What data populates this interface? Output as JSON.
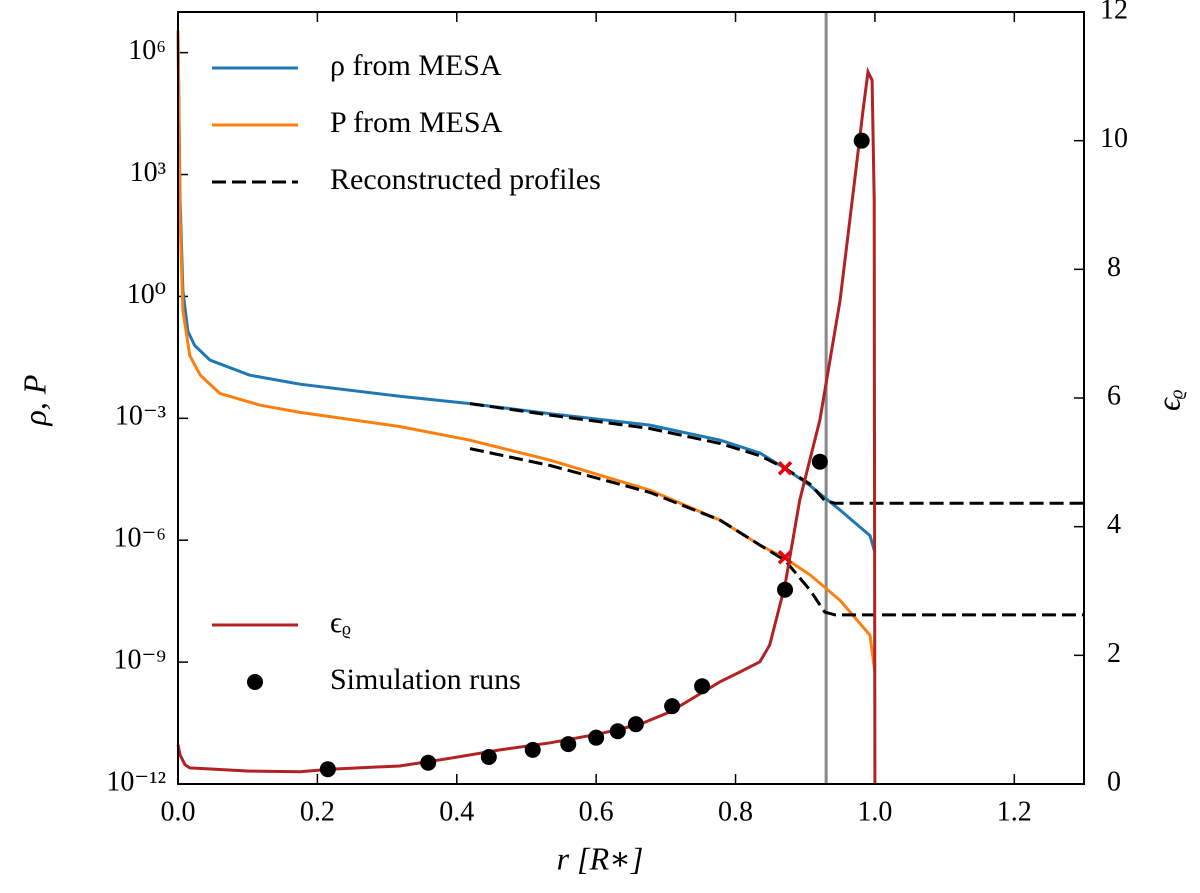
{
  "chart_data": {
    "type": "line",
    "xlabel": "r [R∗]",
    "ylabel": "ρ, P",
    "y2label": "ϵᵨ",
    "xlim": [
      0,
      1.3
    ],
    "xticks": [
      {
        "value": 0,
        "label": "0.0"
      },
      0.2,
      0.4,
      0.6,
      0.8,
      {
        "value": 1,
        "label": "1.0"
      },
      1.2
    ],
    "ylim": [
      1e-12,
      10000000.0
    ],
    "yscale": "log",
    "yticks": [
      {
        "value": 1e-12,
        "label": "10⁻¹²"
      },
      {
        "value": 1e-09,
        "label": "10⁻⁹"
      },
      {
        "value": 1e-06,
        "label": "10⁻⁶"
      },
      {
        "value": 0.001,
        "label": "10⁻³"
      },
      {
        "value": 1,
        "label": "10⁰"
      },
      {
        "value": 1000,
        "label": "10³"
      },
      {
        "value": 1000000,
        "label": "10⁶"
      }
    ],
    "y2lim": [
      0,
      12
    ],
    "y2ticks": [
      0,
      2,
      4,
      6,
      8,
      10,
      12
    ],
    "vline": {
      "x": 0.93,
      "color": "#888888"
    },
    "series": [
      {
        "name": "ρ from MESA",
        "color": "#1f77b4",
        "legend": "upper left",
        "x": [
          0,
          0.003,
          0.007,
          0.014,
          0.024,
          0.046,
          0.103,
          0.175,
          0.318,
          0.419,
          0.534,
          0.677,
          0.778,
          0.835,
          0.871,
          0.907,
          0.95,
          0.993,
          1.0
        ],
        "values": [
          3500000,
          230,
          1.4,
          0.14,
          0.062,
          0.027,
          0.0115,
          0.0069,
          0.0035,
          0.0023,
          0.0013,
          0.00068,
          0.00029,
          0.00014,
          5.9e-05,
          2.2e-05,
          5.5e-06,
          1.3e-06,
          5e-07
        ]
      },
      {
        "name": "P from MESA",
        "color": "#ff7f0e",
        "legend": "upper left",
        "x": [
          0,
          0.003,
          0.007,
          0.017,
          0.032,
          0.06,
          0.118,
          0.175,
          0.318,
          0.419,
          0.534,
          0.677,
          0.778,
          0.835,
          0.871,
          0.907,
          0.95,
          0.993,
          1.0
        ],
        "values": [
          3500000,
          74,
          0.45,
          0.035,
          0.0115,
          0.0041,
          0.0021,
          0.0014,
          0.00063,
          0.00029,
          9.3e-05,
          1.7e-05,
          3.1e-06,
          7.6e-07,
          3.6e-07,
          1.4e-07,
          3.3e-08,
          4.6e-09,
          5.6e-10
        ]
      },
      {
        "name": "Reconstructed profiles",
        "color": "#000000",
        "dash": true,
        "legend": "upper left",
        "x": [
          0.419,
          0.534,
          0.677,
          0.778,
          0.835,
          0.871,
          0.907,
          0.928,
          0.943,
          1.3
        ],
        "values": [
          0.0023,
          0.0012,
          0.00056,
          0.00024,
          0.00012,
          5.9e-05,
          2.4e-05,
          9.5e-06,
          8.1e-06,
          8.1e-06
        ]
      },
      {
        "color": "#000000",
        "dash": true,
        "x": [
          0.419,
          0.534,
          0.677,
          0.778,
          0.835,
          0.871,
          0.907,
          0.928,
          0.943,
          1.3
        ],
        "values": [
          0.00018,
          6.9e-05,
          1.5e-05,
          3.1e-06,
          7.6e-07,
          3.2e-07,
          5.9e-08,
          1.7e-08,
          1.45e-08,
          1.45e-08
        ]
      },
      {
        "type": "scatter",
        "marker": "x",
        "color": "#e8000b",
        "x": [
          0.871,
          0.871
        ],
        "values": [
          5.9e-05,
          3.8e-07
        ]
      },
      {
        "name": "ϵᵨ",
        "color": "#b22222",
        "axis": "y2",
        "legend": "lower left",
        "x": [
          0,
          0.003,
          0.01,
          0.017,
          0.103,
          0.175,
          0.218,
          0.318,
          0.39,
          0.462,
          0.534,
          0.605,
          0.663,
          0.706,
          0.749,
          0.778,
          0.806,
          0.835,
          0.849,
          0.871,
          0.892,
          0.921,
          0.95,
          0.971,
          0.983,
          0.99,
          0.996,
          0.999,
          1.0
        ],
        "values": [
          0.61,
          0.45,
          0.3,
          0.25,
          0.2,
          0.19,
          0.23,
          0.28,
          0.4,
          0.53,
          0.64,
          0.78,
          0.93,
          1.12,
          1.4,
          1.59,
          1.74,
          1.9,
          2.16,
          3.09,
          4.41,
          5.66,
          7.52,
          9.39,
          10.48,
          11.07,
          10.94,
          9.08,
          0
        ]
      },
      {
        "name": "Simulation runs",
        "type": "scatter",
        "marker": "o",
        "color": "#000000",
        "axis": "y2",
        "legend": "lower left",
        "x": [
          0.215,
          0.359,
          0.446,
          0.509,
          0.56,
          0.6,
          0.631,
          0.657,
          0.709,
          0.752,
          0.871,
          0.921,
          0.981
        ],
        "values": [
          0.23,
          0.33,
          0.42,
          0.53,
          0.62,
          0.72,
          0.82,
          0.93,
          1.21,
          1.52,
          3.02,
          5.01,
          10
        ]
      }
    ]
  }
}
